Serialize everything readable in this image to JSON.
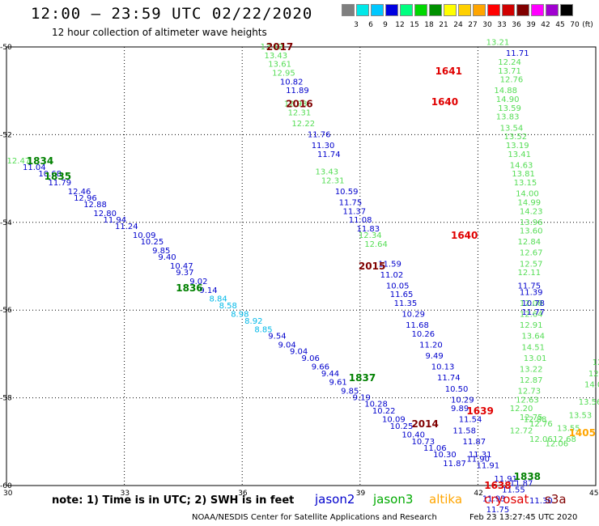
{
  "title": "12:00 – 23:59 UTC 02/22/2020",
  "subtitle": "12 hour collection of altimeter wave heights",
  "colorbar": {
    "labels": [
      "3",
      "6",
      "9",
      "12",
      "15",
      "18",
      "21",
      "24",
      "27",
      "30",
      "33",
      "36",
      "39",
      "42",
      "45",
      "70",
      "(ft)"
    ],
    "colors": [
      "#7f7f7f",
      "#00e8e8",
      "#00c8ff",
      "#0000e0",
      "#00ff7f",
      "#00d800",
      "#009000",
      "#ffff00",
      "#ffd000",
      "#ffa500",
      "#ff0000",
      "#d00000",
      "#800000",
      "#ff00ff",
      "#a000d0",
      "#000000"
    ]
  },
  "axes": {
    "x_ticks": [
      "30",
      "33",
      "36",
      "39",
      "42",
      "45"
    ],
    "y_ticks": [
      "-50",
      "-52",
      "-54",
      "-56",
      "-58",
      "-60"
    ]
  },
  "passes": [
    {
      "label": "2017",
      "color": "#800000",
      "lon": 36.9,
      "lat": -50.0
    },
    {
      "label": "2016",
      "color": "#800000",
      "lon": 37.4,
      "lat": -51.3
    },
    {
      "label": "1641",
      "color": "#e00000",
      "lon": 41.2,
      "lat": -50.55
    },
    {
      "label": "1640",
      "color": "#e00000",
      "lon": 41.1,
      "lat": -51.25
    },
    {
      "label": "1640",
      "color": "#e00000",
      "lon": 41.6,
      "lat": -54.3
    },
    {
      "label": "2015",
      "color": "#800000",
      "lon": 39.25,
      "lat": -55.0
    },
    {
      "label": "1834",
      "color": "#008000",
      "lon": 30.8,
      "lat": -52.6
    },
    {
      "label": "1835",
      "color": "#008000",
      "lon": 31.25,
      "lat": -52.95
    },
    {
      "label": "1836",
      "color": "#008000",
      "lon": 34.6,
      "lat": -55.5
    },
    {
      "label": "1837",
      "color": "#008000",
      "lon": 39.0,
      "lat": -57.55
    },
    {
      "label": "1639",
      "color": "#e00000",
      "lon": 42.0,
      "lat": -58.3
    },
    {
      "label": "2014",
      "color": "#800000",
      "lon": 40.6,
      "lat": -58.6
    },
    {
      "label": "1405",
      "color": "#ffa500",
      "lon": 44.6,
      "lat": -58.8
    },
    {
      "label": "1838",
      "color": "#008000",
      "lon": 43.2,
      "lat": -59.8
    },
    {
      "label": "1638",
      "color": "#e00000",
      "lon": 42.45,
      "lat": -60.0
    }
  ],
  "tracks": [
    {
      "name": "jason2 descending 1",
      "color": "#0000cc",
      "points": [
        [
          30.7,
          -52.75,
          "11.04"
        ],
        [
          31.1,
          -52.9,
          "10.68"
        ],
        [
          31.35,
          -53.1,
          "11.79"
        ],
        [
          31.85,
          -53.3,
          "12.46"
        ],
        [
          32.0,
          -53.45,
          "12.96"
        ],
        [
          32.25,
          -53.6,
          "12.88"
        ],
        [
          32.5,
          -53.8,
          "12.80"
        ],
        [
          32.75,
          -53.95,
          "11.94"
        ],
        [
          33.05,
          -54.1,
          "11.24"
        ],
        [
          33.5,
          -54.3,
          "10.09"
        ],
        [
          33.7,
          -54.45,
          "10.25"
        ],
        [
          34.0,
          -54.65,
          "9.85"
        ],
        [
          34.15,
          -54.8,
          "9.40"
        ],
        [
          34.45,
          -55.0,
          "10.47"
        ],
        [
          34.6,
          -55.15,
          "9.37"
        ],
        [
          34.95,
          -55.35,
          "9.02"
        ],
        [
          35.2,
          -55.55,
          "9.14"
        ],
        [
          35.45,
          -55.75,
          "8.84"
        ],
        [
          35.7,
          -55.9,
          "8.58"
        ],
        [
          36.0,
          -56.1,
          "8.98"
        ],
        [
          36.35,
          -56.25,
          "8.92"
        ],
        [
          36.6,
          -56.45,
          "8.85"
        ],
        [
          36.95,
          -56.6,
          "9.54"
        ],
        [
          37.2,
          -56.8,
          "9.04"
        ],
        [
          37.5,
          -56.95,
          "9.04"
        ],
        [
          37.8,
          -57.1,
          "9.06"
        ],
        [
          38.05,
          -57.3,
          "9.66"
        ],
        [
          38.3,
          -57.45,
          "9.44"
        ],
        [
          38.5,
          -57.65,
          "9.61"
        ],
        [
          38.8,
          -57.85,
          "9.85"
        ],
        [
          39.1,
          -58.0,
          "9.19"
        ],
        [
          39.4,
          -58.15,
          "10.28"
        ],
        [
          39.6,
          -58.3,
          "10.22"
        ],
        [
          39.85,
          -58.5,
          "10.09"
        ],
        [
          40.05,
          -58.65,
          "10.25"
        ],
        [
          40.35,
          -58.85,
          "10.40"
        ],
        [
          40.6,
          -59.0,
          "10.73"
        ],
        [
          40.9,
          -59.15,
          "11.06"
        ],
        [
          41.15,
          -59.3,
          "10.30"
        ],
        [
          41.4,
          -59.5,
          "11.87"
        ]
      ]
    },
    {
      "name": "jason3 west descending",
      "color": "#22cc22",
      "points": [
        [
          30.3,
          -52.6,
          "12.47"
        ],
        [
          36.75,
          -50.0,
          "13.12"
        ],
        [
          36.85,
          -50.2,
          "13.43"
        ],
        [
          36.95,
          -50.4,
          "13.61"
        ],
        [
          37.05,
          -50.6,
          "12.95"
        ],
        [
          37.35,
          -51.3,
          "12.98"
        ],
        [
          37.45,
          -51.5,
          "12.31"
        ],
        [
          37.55,
          -51.75,
          "12.22"
        ],
        [
          38.15,
          -52.85,
          "13.43"
        ],
        [
          38.3,
          -53.05,
          "12.31"
        ],
        [
          39.25,
          -54.3,
          "12.34"
        ],
        [
          39.4,
          -54.5,
          "12.64"
        ]
      ]
    },
    {
      "name": "jason2 west descending",
      "color": "#0000cc",
      "points": [
        [
          37.25,
          -50.8,
          "10.82"
        ],
        [
          37.4,
          -51.0,
          "11.89"
        ],
        [
          37.95,
          -52.0,
          "11.76"
        ],
        [
          38.05,
          -52.25,
          "11.30"
        ],
        [
          38.2,
          -52.45,
          "11.74"
        ],
        [
          38.65,
          -53.3,
          "10.59"
        ],
        [
          38.75,
          -53.55,
          "11.75"
        ],
        [
          38.85,
          -53.75,
          "11.37"
        ],
        [
          39.0,
          -53.95,
          "11.08"
        ],
        [
          39.2,
          -54.15,
          "11.83"
        ],
        [
          39.75,
          -54.95,
          "11.59"
        ],
        [
          39.8,
          -55.2,
          "11.02"
        ],
        [
          39.95,
          -55.45,
          "10.05"
        ],
        [
          40.05,
          -55.65,
          "11.65"
        ],
        [
          40.15,
          -55.85,
          "11.35"
        ],
        [
          40.35,
          -56.1,
          "10.29"
        ],
        [
          40.45,
          -56.35,
          "11.68"
        ],
        [
          40.6,
          -56.55,
          "10.26"
        ],
        [
          40.8,
          -56.8,
          "11.20"
        ],
        [
          40.95,
          -57.05,
          "9.49"
        ],
        [
          41.1,
          -57.3,
          "10.13"
        ],
        [
          41.25,
          -57.55,
          "11.74"
        ],
        [
          41.45,
          -57.8,
          "10.50"
        ],
        [
          41.6,
          -58.05,
          "10.29"
        ],
        [
          41.6,
          -58.25,
          "9.89"
        ],
        [
          41.8,
          -58.5,
          "11.54"
        ],
        [
          41.65,
          -58.75,
          "11.58"
        ],
        [
          41.9,
          -59.0,
          "11.87"
        ],
        [
          42.0,
          -59.4,
          "11.90"
        ],
        [
          42.25,
          -59.55,
          "11.91"
        ],
        [
          42.05,
          -59.3,
          "11.31"
        ],
        [
          42.7,
          -59.85,
          "11.91"
        ],
        [
          43.1,
          -59.95,
          "11.87"
        ],
        [
          42.9,
          -60.1,
          "11.55"
        ],
        [
          43.6,
          -60.35,
          "11.30"
        ],
        [
          42.4,
          -60.3,
          "11.93"
        ],
        [
          42.5,
          -60.55,
          "11.75"
        ]
      ]
    },
    {
      "name": "jason3 east descending",
      "color": "#22cc22",
      "points": [
        [
          42.5,
          -49.9,
          "13.21"
        ],
        [
          42.8,
          -50.35,
          "12.24"
        ],
        [
          42.8,
          -50.55,
          "13.71"
        ],
        [
          42.85,
          -50.75,
          "12.76"
        ],
        [
          42.7,
          -51.0,
          "14.88"
        ],
        [
          42.75,
          -51.2,
          "14.90"
        ],
        [
          42.8,
          -51.4,
          "13.59"
        ],
        [
          42.75,
          -51.6,
          "13.83"
        ],
        [
          42.85,
          -51.85,
          "13.54"
        ],
        [
          42.95,
          -52.05,
          "13.52"
        ],
        [
          43.0,
          -52.25,
          "13.19"
        ],
        [
          43.05,
          -52.45,
          "13.41"
        ],
        [
          43.1,
          -52.7,
          "14.63"
        ],
        [
          43.15,
          -52.9,
          "13.81"
        ],
        [
          43.2,
          -53.1,
          "13.15"
        ],
        [
          43.25,
          -53.35,
          "14.00"
        ],
        [
          43.3,
          -53.55,
          "14.99"
        ],
        [
          43.35,
          -53.75,
          "14.23"
        ],
        [
          43.35,
          -54.0,
          "13.96"
        ],
        [
          43.35,
          -54.2,
          "13.60"
        ],
        [
          43.3,
          -54.45,
          "12.84"
        ],
        [
          43.35,
          -54.7,
          "12.67"
        ],
        [
          43.35,
          -54.95,
          "12.57"
        ],
        [
          43.3,
          -55.15,
          "12.11"
        ],
        [
          43.35,
          -55.85,
          "12.08"
        ],
        [
          43.35,
          -56.1,
          "12.64"
        ],
        [
          43.35,
          -56.35,
          "12.91"
        ],
        [
          43.4,
          -56.6,
          "13.64"
        ],
        [
          43.4,
          -56.85,
          "14.51"
        ],
        [
          43.45,
          -57.1,
          "13.01"
        ],
        [
          43.35,
          -57.35,
          "13.22"
        ],
        [
          43.35,
          -57.6,
          "12.87"
        ],
        [
          43.3,
          -57.85,
          "12.73"
        ],
        [
          43.25,
          -58.05,
          "12.63"
        ],
        [
          43.1,
          -58.25,
          "12.20"
        ],
        [
          43.35,
          -58.45,
          "12.75"
        ],
        [
          43.45,
          -58.5,
          "12.88"
        ],
        [
          43.6,
          -58.6,
          "12.76"
        ],
        [
          43.1,
          -58.75,
          "12.72"
        ],
        [
          43.6,
          -58.95,
          "12.06"
        ],
        [
          44.0,
          -59.05,
          "12.06"
        ],
        [
          44.2,
          -58.95,
          "12.68"
        ],
        [
          44.3,
          -58.7,
          "13.55"
        ],
        [
          44.6,
          -58.4,
          "13.53"
        ],
        [
          44.85,
          -58.1,
          "13.56"
        ],
        [
          45.0,
          -57.7,
          "14.07"
        ],
        [
          45.1,
          -57.45,
          "12.83"
        ],
        [
          45.2,
          -57.2,
          "12.10"
        ],
        [
          45.45,
          -56.8,
          "12.28"
        ],
        [
          45.6,
          -56.25,
          "12.76"
        ]
      ]
    },
    {
      "name": "jason2 east descending",
      "color": "#0000cc",
      "points": [
        [
          43.0,
          -50.15,
          "11.71"
        ],
        [
          43.3,
          -55.45,
          "11.75"
        ],
        [
          43.35,
          -55.6,
          "11.39"
        ],
        [
          43.4,
          -55.85,
          "10.78"
        ],
        [
          43.4,
          -56.05,
          "11.77"
        ],
        [
          45.6,
          -57.0,
          "11.89"
        ]
      ]
    },
    {
      "name": "jason2 fragment east",
      "color": "#0000cc",
      "points": []
    }
  ],
  "note": "note:  1) Time is in UTC;  2) SWH is in feet",
  "legend": [
    {
      "label": "jason2",
      "color": "#0000cc"
    },
    {
      "label": "jason3",
      "color": "#00aa00"
    },
    {
      "label": "altika",
      "color": "#ffa500"
    },
    {
      "label": "cryosat",
      "color": "#e00000"
    },
    {
      "label": "s3a",
      "color": "#800000"
    }
  ],
  "credit": "NOAA/NESDIS Center for Satellite Applications and Research",
  "stamp": "Feb 23 13:27:45 UTC 2020"
}
